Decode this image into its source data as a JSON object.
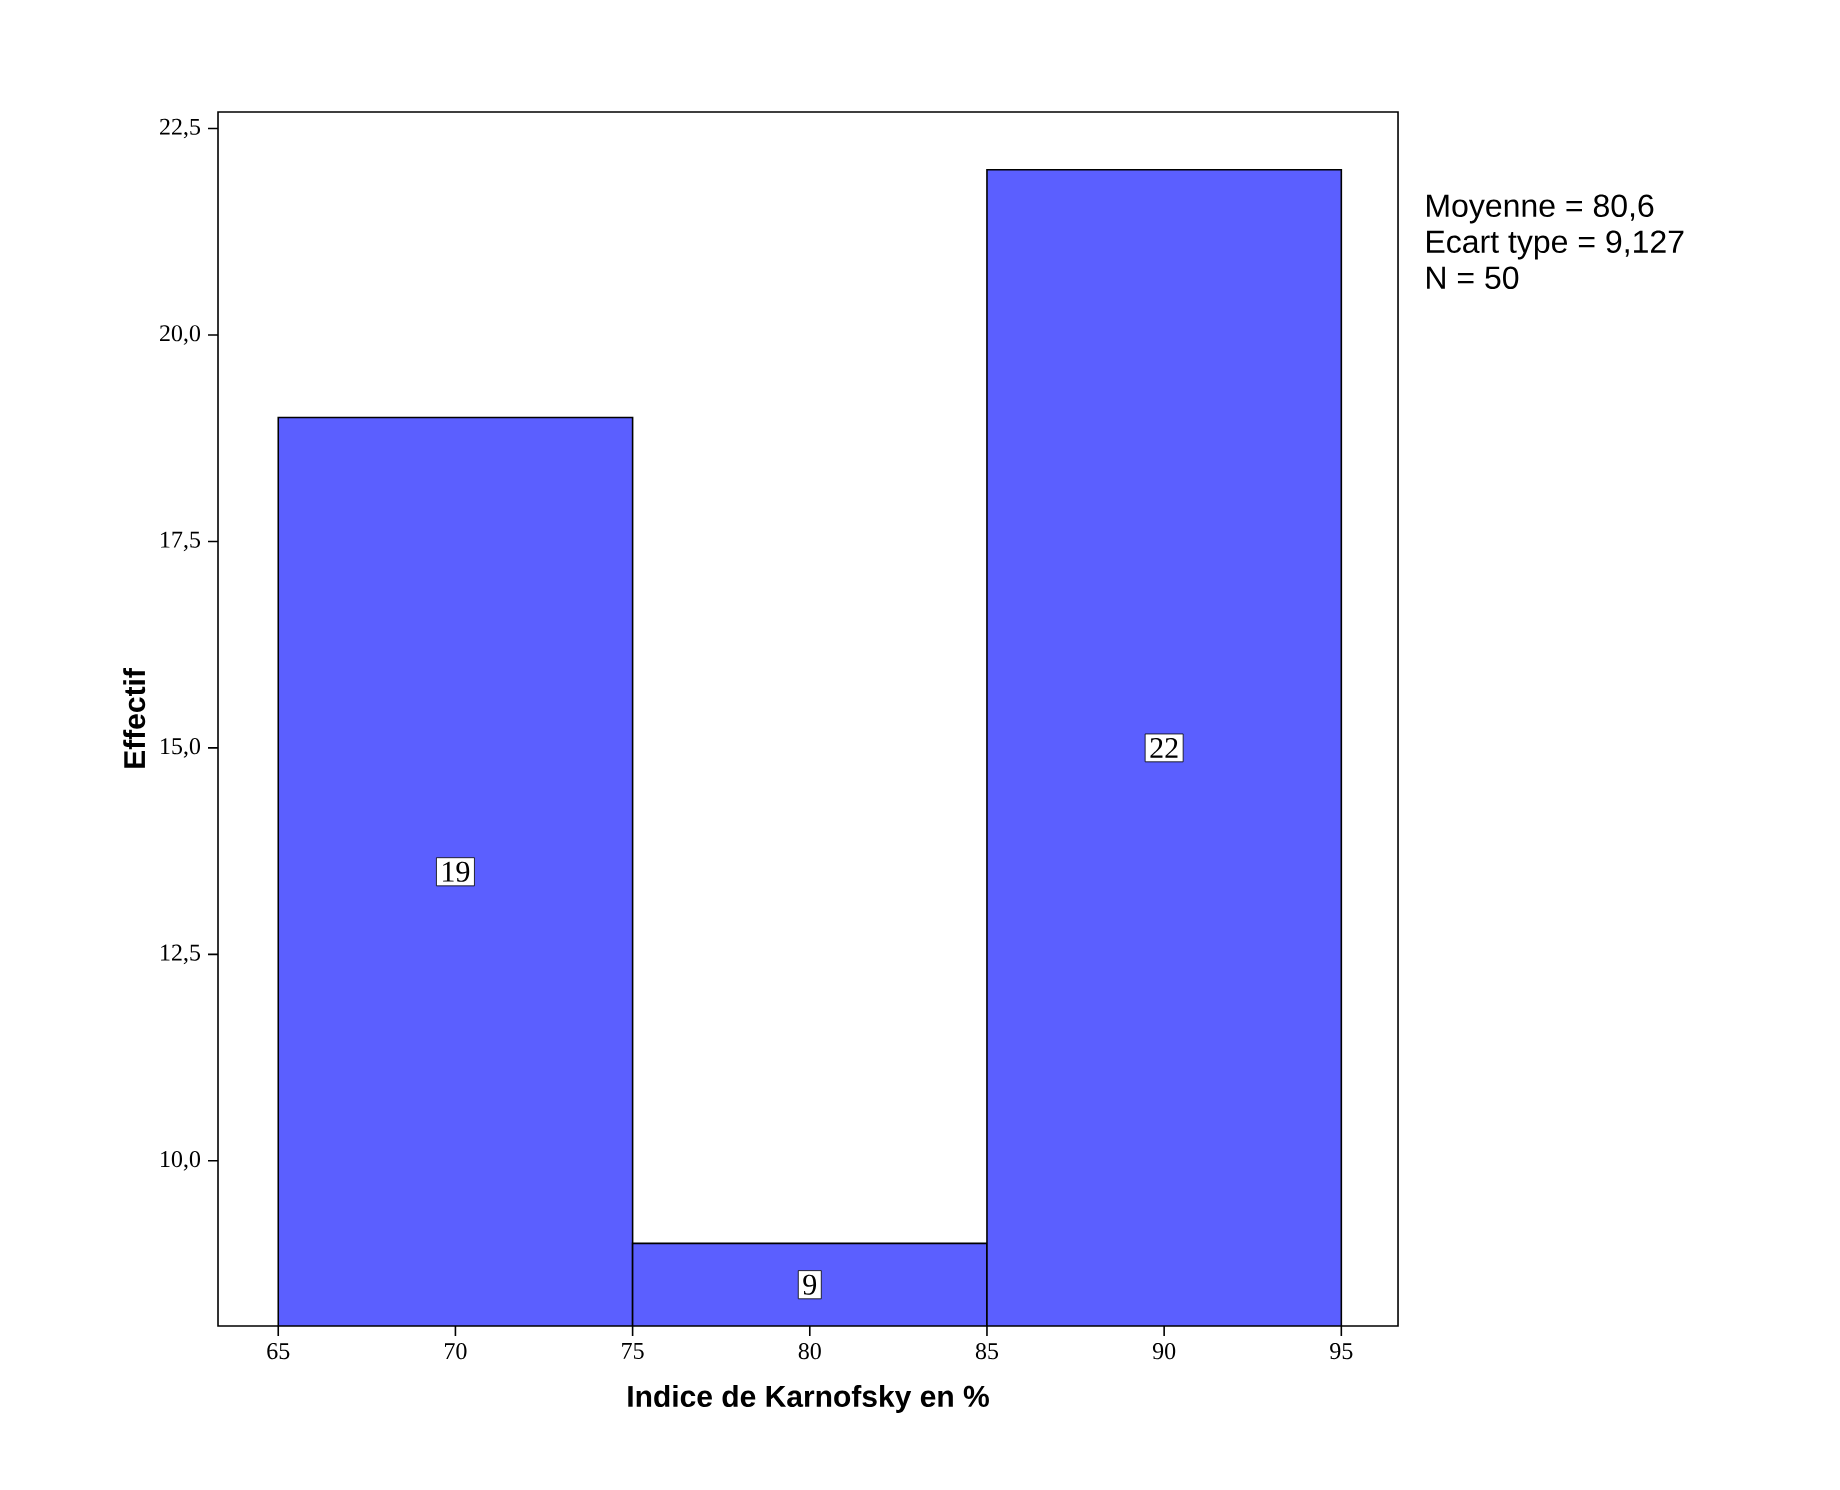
{
  "chart_data": {
    "type": "histogram",
    "xlabel": "Indice de Karnofsky en %",
    "ylabel": "Effectif",
    "bins": [
      65,
      75,
      85,
      95
    ],
    "values": [
      19,
      9,
      22
    ],
    "color": "#5b5fff",
    "data_labels": true,
    "xlim": [
      63.3,
      96.6
    ],
    "ylim": [
      8,
      22.7
    ],
    "xticks": [
      65,
      70,
      75,
      80,
      85,
      90,
      95
    ],
    "yticks": [
      {
        "value": 10,
        "label": "10,0"
      },
      {
        "value": 12.5,
        "label": "12,5"
      },
      {
        "value": 15,
        "label": "15,0"
      },
      {
        "value": 17.5,
        "label": "17,5"
      },
      {
        "value": 20,
        "label": "20,0"
      },
      {
        "value": 22.5,
        "label": "22,5"
      }
    ],
    "annotations": [
      "Moyenne = 80,6",
      "Ecart type = 9,127",
      "N = 50"
    ]
  }
}
